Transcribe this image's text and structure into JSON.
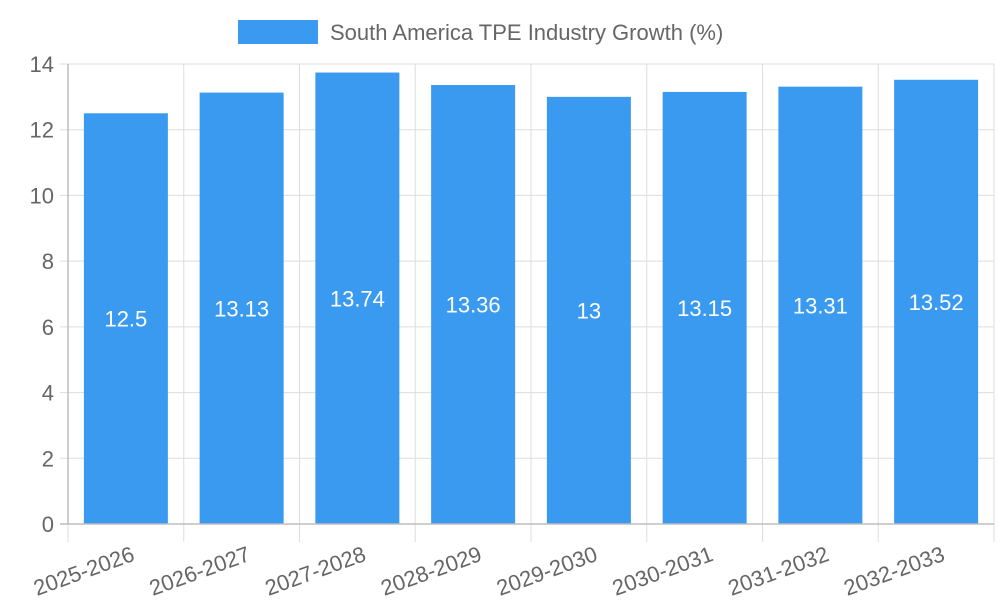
{
  "chart_data": {
    "type": "bar",
    "categories": [
      "2025-2026",
      "2026-2027",
      "2027-2028",
      "2028-2029",
      "2029-2030",
      "2030-2031",
      "2031-2032",
      "2032-2033"
    ],
    "series": [
      {
        "name": "South America TPE Industry Growth (%)",
        "values": [
          12.5,
          13.13,
          13.74,
          13.36,
          13,
          13.15,
          13.31,
          13.52
        ],
        "color": "#3a9af0"
      }
    ],
    "ylim": [
      0,
      14
    ],
    "yticks": [
      0,
      2,
      4,
      6,
      8,
      10,
      12,
      14
    ],
    "xlabel": "",
    "ylabel": "",
    "grid": true,
    "legend_position": "top-center",
    "data_labels": true,
    "colors": {
      "grid": "#dddddd",
      "axis": "#bdbdbd",
      "text": "#666666",
      "data_label": "#ffffff"
    }
  }
}
